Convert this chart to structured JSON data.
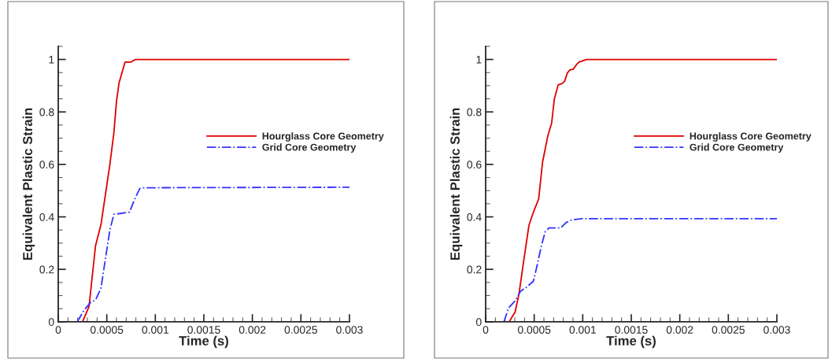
{
  "chart_data": [
    {
      "type": "line",
      "xlabel": "Time (s)",
      "ylabel": "Equivalent Plastic Strain",
      "xlim": [
        0,
        0.003
      ],
      "ylim": [
        0,
        1.05
      ],
      "xticks": [
        0,
        0.0005,
        0.001,
        0.0015,
        0.002,
        0.0025,
        0.003
      ],
      "yticks": [
        0,
        0.2,
        0.4,
        0.6,
        0.8,
        1
      ],
      "legend": "right",
      "grid": false,
      "series": [
        {
          "name": "Hourglass Core Geometry",
          "color": "#e00000",
          "line_style": "solid",
          "x": [
            0.00025,
            0.000317,
            0.000384,
            0.00044,
            0.000532,
            0.000573,
            0.0006,
            0.000626,
            0.000688,
            0.000747,
            0.000796,
            0.003
          ],
          "values": [
            0,
            0.058,
            0.29,
            0.37,
            0.6,
            0.72,
            0.84,
            0.91,
            0.99,
            0.99,
            1.0,
            1.0
          ]
        },
        {
          "name": "Grid Core Geometry",
          "color": "#3333ff",
          "line_style": "dashdot",
          "x": [
            0.000196,
            0.000263,
            0.00033,
            0.000384,
            0.00044,
            0.00049,
            0.000532,
            0.000573,
            0.00064,
            0.000734,
            0.000788,
            0.00084,
            0.00088,
            0.003
          ],
          "values": [
            0,
            0.043,
            0.073,
            0.083,
            0.128,
            0.25,
            0.35,
            0.41,
            0.413,
            0.418,
            0.468,
            0.508,
            0.511,
            0.513
          ]
        }
      ]
    },
    {
      "type": "line",
      "xlabel": "Time (s)",
      "ylabel": "Equivalent Plastic Strain",
      "xlim": [
        0,
        0.003
      ],
      "ylim": [
        0,
        1.05
      ],
      "xticks": [
        0,
        0.0005,
        0.001,
        0.0015,
        0.002,
        0.0025,
        0.003
      ],
      "yticks": [
        0,
        0.2,
        0.4,
        0.6,
        0.8,
        1
      ],
      "legend": "right",
      "grid": false,
      "series": [
        {
          "name": "Hourglass Core Geometry",
          "color": "#e00000",
          "line_style": "solid",
          "x": [
            0.000242,
            0.000304,
            0.000344,
            0.000398,
            0.000446,
            0.000492,
            0.000546,
            0.000586,
            0.00064,
            0.00068,
            0.000707,
            0.000747,
            0.000788,
            0.000815,
            0.000841,
            0.000868,
            0.000903,
            0.000935,
            0.000962,
            0.001038,
            0.003
          ],
          "values": [
            0,
            0.038,
            0.108,
            0.248,
            0.368,
            0.418,
            0.468,
            0.608,
            0.708,
            0.758,
            0.848,
            0.903,
            0.908,
            0.918,
            0.948,
            0.96,
            0.963,
            0.98,
            0.99,
            1.0,
            1.0
          ]
        },
        {
          "name": "Grid Core Geometry",
          "color": "#3333ff",
          "line_style": "dashdot",
          "x": [
            0.000188,
            0.000237,
            0.000304,
            0.000358,
            0.000425,
            0.000492,
            0.000532,
            0.000573,
            0.000613,
            0.000653,
            0.000774,
            0.000828,
            0.000882,
            0.000989,
            0.003
          ],
          "values": [
            0,
            0.053,
            0.08,
            0.116,
            0.133,
            0.155,
            0.218,
            0.288,
            0.343,
            0.358,
            0.358,
            0.378,
            0.388,
            0.393,
            0.393
          ]
        }
      ]
    }
  ]
}
